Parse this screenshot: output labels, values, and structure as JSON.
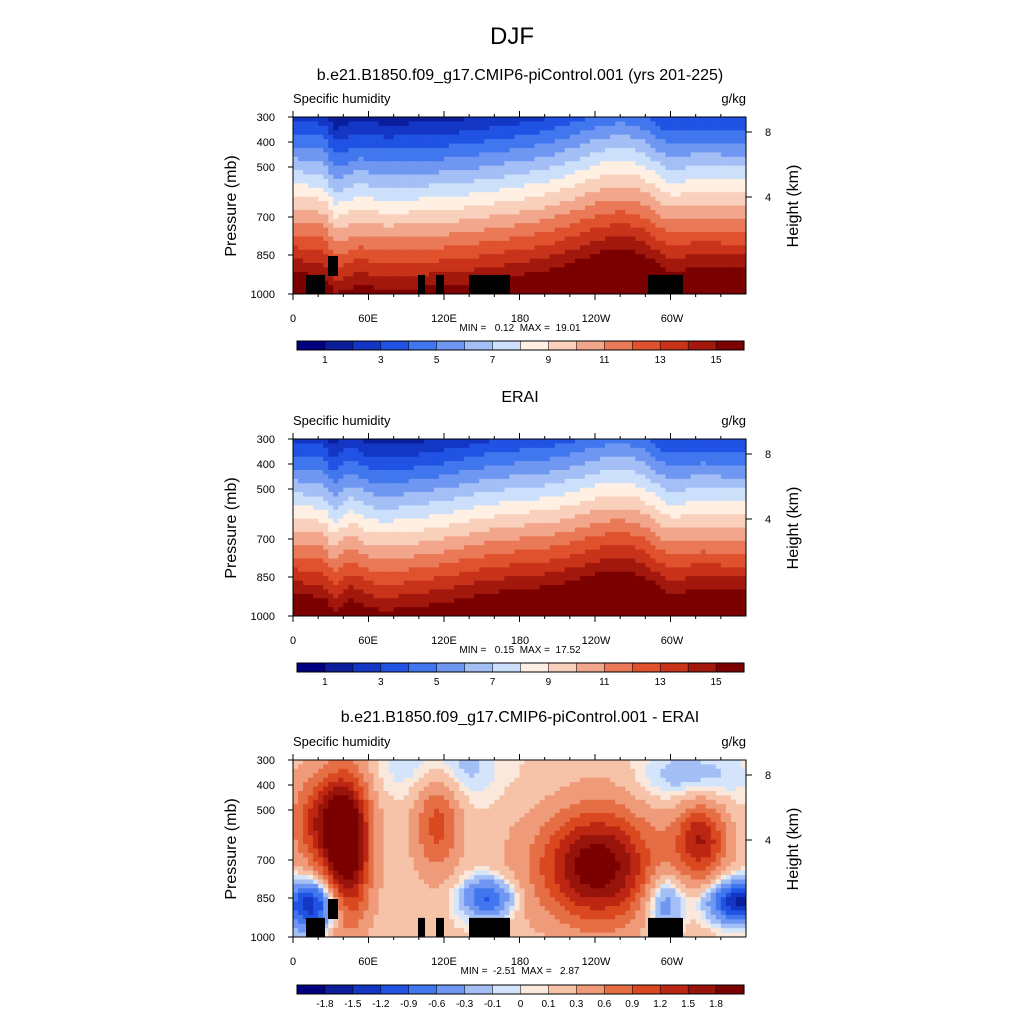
{
  "title": "DJF",
  "chart_data": [
    {
      "type": "heatmap",
      "title": "b.e21.B1850.f09_g17.CMIP6-piControl.001 (yrs 201-225)",
      "left_label": "Specific humidity",
      "right_label": "g/kg",
      "ylabel": "Pressure (mb)",
      "ylabel_right": "Height (km)",
      "yticks": [
        "300",
        "400",
        "500",
        "700",
        "850",
        "1000"
      ],
      "yticks_right": [
        "8",
        "4"
      ],
      "xticks": [
        "0",
        "60E",
        "120E",
        "180",
        "120W",
        "60W"
      ],
      "stats": "MIN =   0.12  MAX =  19.01",
      "colorbar_labels": [
        "1",
        "3",
        "5",
        "7",
        "9",
        "11",
        "13",
        "15"
      ],
      "palette": [
        "#00007f",
        "#0a1e9c",
        "#1436c4",
        "#2052e3",
        "#4177ee",
        "#6f97f2",
        "#a3bff5",
        "#cde0fb",
        "#fff0e3",
        "#f8d0bc",
        "#f2a78c",
        "#ea7957",
        "#e0522e",
        "#c8331a",
        "#a3180d",
        "#7b0000"
      ]
    },
    {
      "type": "heatmap",
      "title": "ERAI",
      "left_label": "Specific humidity",
      "right_label": "g/kg",
      "ylabel": "Pressure (mb)",
      "ylabel_right": "Height (km)",
      "yticks": [
        "300",
        "400",
        "500",
        "700",
        "850",
        "1000"
      ],
      "yticks_right": [
        "8",
        "4"
      ],
      "xticks": [
        "0",
        "60E",
        "120E",
        "180",
        "120W",
        "60W"
      ],
      "stats": "MIN =   0.15  MAX =  17.52",
      "colorbar_labels": [
        "1",
        "3",
        "5",
        "7",
        "9",
        "11",
        "13",
        "15"
      ],
      "palette": [
        "#00007f",
        "#0a1e9c",
        "#1436c4",
        "#2052e3",
        "#4177ee",
        "#6f97f2",
        "#a3bff5",
        "#cde0fb",
        "#fff0e3",
        "#f8d0bc",
        "#f2a78c",
        "#ea7957",
        "#e0522e",
        "#c8331a",
        "#a3180d",
        "#7b0000"
      ]
    },
    {
      "type": "heatmap",
      "title": "b.e21.B1850.f09_g17.CMIP6-piControl.001 - ERAI",
      "left_label": "Specific humidity",
      "right_label": "g/kg",
      "ylabel": "Pressure (mb)",
      "ylabel_right": "Height (km)",
      "yticks": [
        "300",
        "400",
        "500",
        "700",
        "850",
        "1000"
      ],
      "yticks_right": [
        "8",
        "4"
      ],
      "xticks": [
        "0",
        "60E",
        "120E",
        "180",
        "120W",
        "60W"
      ],
      "stats": "MIN =  -2.51  MAX =   2.87",
      "colorbar_labels": [
        "-1.8",
        "-1.5",
        "-1.2",
        "-0.9",
        "-0.6",
        "-0.3",
        "-0.1",
        "0",
        "0.1",
        "0.3",
        "0.6",
        "0.9",
        "1.2",
        "1.5",
        "1.8"
      ],
      "palette": [
        "#00007f",
        "#0a1e9c",
        "#1436c4",
        "#2052e3",
        "#4177ee",
        "#6f97f2",
        "#a3bff5",
        "#d4e5fb",
        "#fbe8dc",
        "#f6c2a8",
        "#ef9a78",
        "#e66e45",
        "#d9481f",
        "#bd2612",
        "#98140a",
        "#7b0000"
      ]
    }
  ]
}
